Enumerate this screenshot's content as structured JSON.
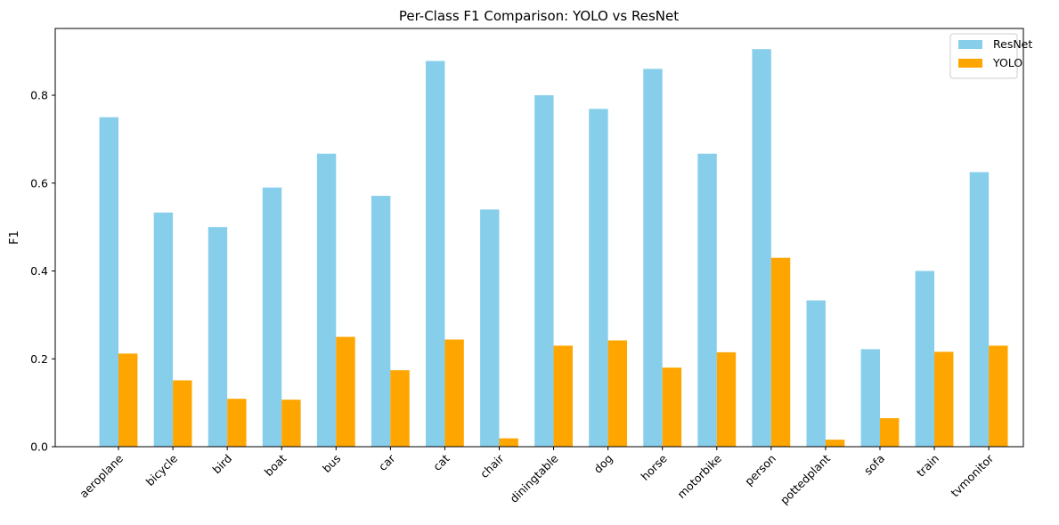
{
  "chart_data": {
    "type": "bar",
    "title": "Per-Class F1 Comparison: YOLO vs ResNet",
    "xlabel": "",
    "ylabel": "F1",
    "ylim": [
      0,
      0.952
    ],
    "yticks": [
      "0.0",
      "0.2",
      "0.4",
      "0.6",
      "0.8"
    ],
    "grid": false,
    "legend_position": "top-right",
    "categories": [
      "aeroplane",
      "bicycle",
      "bird",
      "boat",
      "bus",
      "car",
      "cat",
      "chair",
      "diningtable",
      "dog",
      "horse",
      "motorbike",
      "person",
      "pottedplant",
      "sofa",
      "train",
      "tvmonitor"
    ],
    "series": [
      {
        "name": "ResNet",
        "color": "#87ceeb",
        "values": [
          0.75,
          0.533,
          0.5,
          0.59,
          0.667,
          0.571,
          0.878,
          0.54,
          0.8,
          0.769,
          0.86,
          0.667,
          0.905,
          0.333,
          0.222,
          0.4,
          0.625
        ]
      },
      {
        "name": "YOLO",
        "color": "#ffa500",
        "values": [
          0.212,
          0.151,
          0.109,
          0.107,
          0.25,
          0.174,
          0.244,
          0.019,
          0.23,
          0.242,
          0.18,
          0.215,
          0.43,
          0.016,
          0.065,
          0.216,
          0.23
        ]
      }
    ]
  }
}
